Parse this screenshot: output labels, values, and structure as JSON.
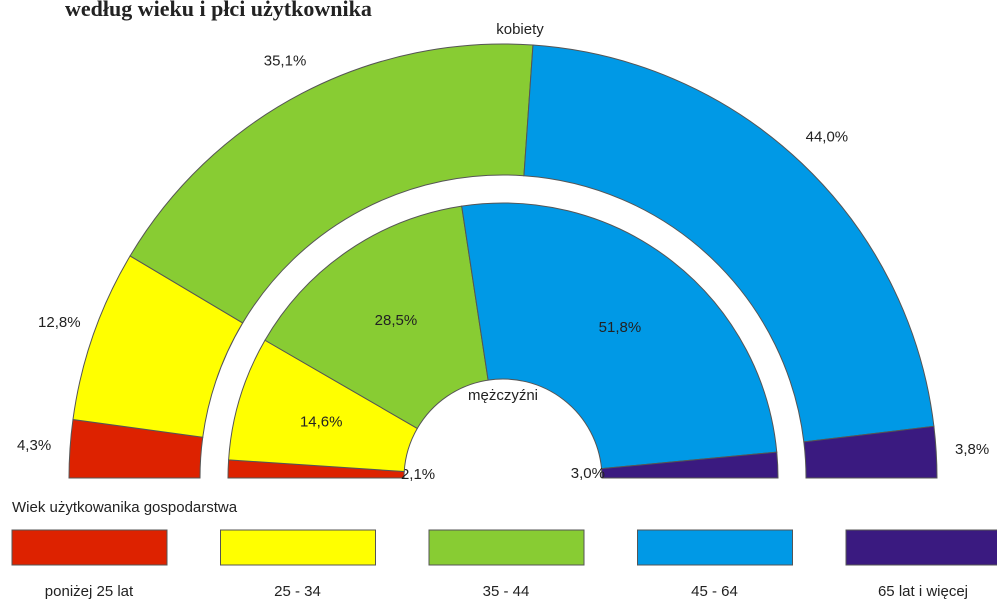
{
  "chart_data": {
    "type": "half-donut",
    "title": "według wieku i płci użytkownika",
    "legend_title": "Wiek użytkowanika gospodarstwa",
    "categories": [
      "poniżej 25 lat",
      "25 - 34",
      "35 - 44",
      "45 - 64",
      "65 lat i więcej"
    ],
    "colors": [
      "#dd2200",
      "#ffff00",
      "#88cc33",
      "#0099e6",
      "#3a1a80"
    ],
    "series": [
      {
        "name": "kobiety",
        "values": [
          4.3,
          12.8,
          35.1,
          44.0,
          3.8
        ],
        "value_labels": [
          "4,3%",
          "12,8%",
          "35,1%",
          "44,0%",
          "3,8%"
        ]
      },
      {
        "name": "mężczyźni",
        "values": [
          2.1,
          14.6,
          28.5,
          51.8,
          3.0
        ],
        "value_labels": [
          "2,1%",
          "14,6%",
          "28,5%",
          "51,8%",
          "3,0%"
        ]
      }
    ]
  }
}
